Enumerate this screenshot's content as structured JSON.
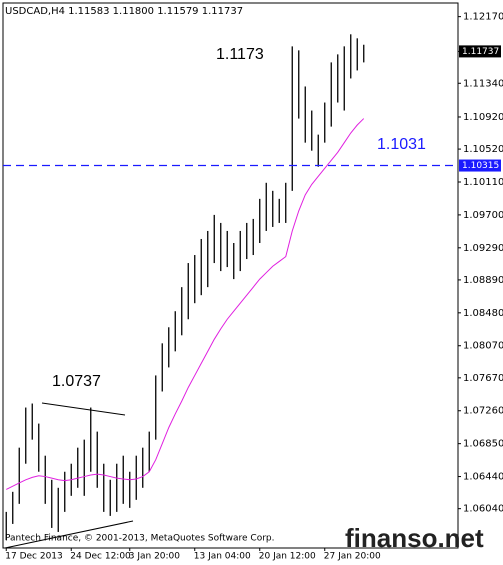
{
  "chart_data": {
    "type": "ohlc",
    "title": "USDCAD,H4  1.11583 1.11800 1.11579 1.11737",
    "categories": [
      "17 Dec 2013",
      null,
      null,
      null,
      null,
      null,
      null,
      null,
      null,
      null,
      "24 Dec 12:00",
      null,
      null,
      null,
      null,
      null,
      null,
      null,
      null,
      "3 Jan 20:00",
      null,
      null,
      null,
      null,
      null,
      null,
      null,
      null,
      null,
      "13 Jan 04:00",
      null,
      null,
      null,
      null,
      null,
      null,
      null,
      null,
      null,
      "20 Jan 12:00",
      null,
      null,
      null,
      null,
      null,
      null,
      null,
      null,
      null,
      "27 Jan 20:00",
      null,
      null,
      null,
      null,
      null,
      null
    ],
    "high": [
      1.06,
      1.0625,
      1.068,
      1.073,
      1.0735,
      1.071,
      1.067,
      1.064,
      1.063,
      1.065,
      1.066,
      1.068,
      1.069,
      1.073,
      1.07,
      1.066,
      1.064,
      1.066,
      1.067,
      1.065,
      1.067,
      1.068,
      1.07,
      1.077,
      1.081,
      1.083,
      1.085,
      1.088,
      1.091,
      1.092,
      1.094,
      1.095,
      1.097,
      1.096,
      1.095,
      1.0935,
      1.095,
      1.096,
      1.0965,
      1.099,
      1.101,
      1.1,
      1.099,
      1.101,
      1.118,
      1.1175,
      1.113,
      1.11,
      1.107,
      1.111,
      1.116,
      1.117,
      1.118,
      1.1195,
      1.119,
      1.1182
    ],
    "low": [
      1.0565,
      1.0585,
      1.061,
      1.066,
      1.069,
      1.065,
      1.061,
      1.058,
      1.0575,
      1.06,
      1.062,
      1.063,
      1.062,
      1.065,
      1.063,
      1.06,
      1.0595,
      1.06,
      1.061,
      1.0605,
      1.0615,
      1.063,
      1.065,
      1.069,
      1.075,
      1.078,
      1.08,
      1.082,
      1.084,
      1.086,
      1.087,
      1.088,
      1.091,
      1.09,
      1.0905,
      1.089,
      1.09,
      1.0915,
      1.092,
      1.0935,
      1.095,
      1.0955,
      1.096,
      1.096,
      1.1,
      1.109,
      1.106,
      1.105,
      1.103,
      1.106,
      1.108,
      1.111,
      1.11,
      1.114,
      1.115,
      1.116
    ],
    "ma": {
      "color": "#e020e0",
      "values": [
        1.0628,
        1.0632,
        1.0636,
        1.064,
        1.0643,
        1.0645,
        1.0644,
        1.0642,
        1.064,
        1.0639,
        1.064,
        1.0642,
        1.0644,
        1.0646,
        1.0647,
        1.0646,
        1.0644,
        1.0642,
        1.0641,
        1.064,
        1.0641,
        1.0644,
        1.065,
        1.0665,
        1.0685,
        1.0705,
        1.0722,
        1.0738,
        1.0755,
        1.077,
        1.0785,
        1.08,
        1.0815,
        1.0828,
        1.084,
        1.085,
        1.086,
        1.087,
        1.088,
        1.089,
        1.0898,
        1.0906,
        1.0912,
        1.0918,
        1.095,
        1.0975,
        1.0995,
        1.1008,
        1.1018,
        1.1028,
        1.1038,
        1.1048,
        1.106,
        1.1072,
        1.1082,
        1.109
      ]
    },
    "color": "#000000",
    "ylim": [
      1.0555,
      1.1234
    ],
    "yticks": [
      {
        "value": 1.1217,
        "label": "1.12170"
      },
      {
        "value": 1.1134,
        "label": "1.11340"
      },
      {
        "value": 1.1092,
        "label": "1.10920"
      },
      {
        "value": 1.1052,
        "label": "1.10520"
      },
      {
        "value": 1.1011,
        "label": "1.10110"
      },
      {
        "value": 1.097,
        "label": "1.09700"
      },
      {
        "value": 1.0929,
        "label": "1.09290"
      },
      {
        "value": 1.0889,
        "label": "1.08890"
      },
      {
        "value": 1.0848,
        "label": "1.08480"
      },
      {
        "value": 1.0807,
        "label": "1.08070"
      },
      {
        "value": 1.0767,
        "label": "1.07670"
      },
      {
        "value": 1.0726,
        "label": "1.07260"
      },
      {
        "value": 1.0685,
        "label": "1.06850"
      },
      {
        "value": 1.0644,
        "label": "1.06440"
      },
      {
        "value": 1.0604,
        "label": "1.06040"
      }
    ],
    "current_price": 1.11737,
    "level": {
      "value": 1.10315,
      "color": "#1a1aff"
    },
    "annotations": [
      "1.1173",
      "1.0737",
      "1.1031"
    ],
    "copyright": "Pantech Finance, © 2001-2013, MetaQuotes Software Corp.",
    "watermark": "finanso.net"
  }
}
